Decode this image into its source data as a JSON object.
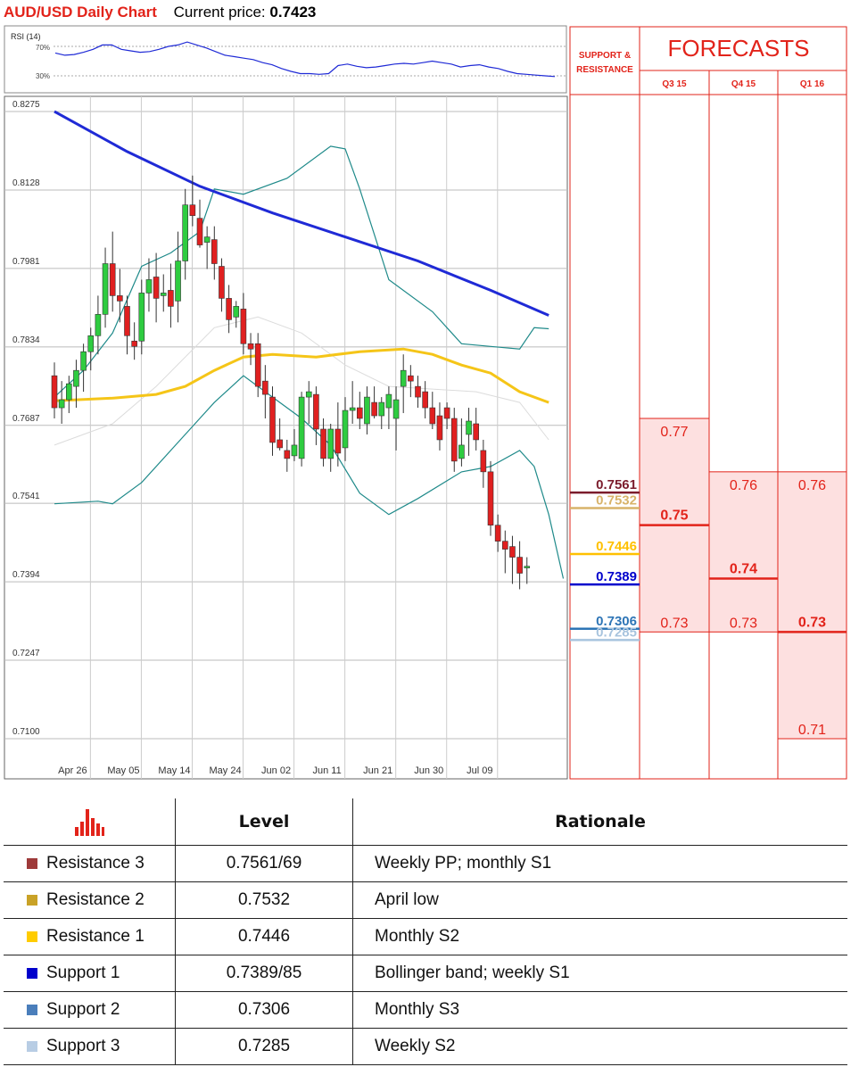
{
  "header": {
    "title": "AUD/USD Daily Chart",
    "price_label": "Current price:",
    "price_value": "0.7423"
  },
  "chart_data": {
    "type": "candlestick",
    "rsi": {
      "label": "RSI (14)",
      "levels": [
        "70%",
        "30%"
      ],
      "level_values": [
        70,
        30
      ],
      "values": [
        61,
        58,
        59,
        62,
        66,
        72,
        72,
        66,
        64,
        62,
        63,
        66,
        70,
        72,
        76,
        72,
        68,
        63,
        58,
        56,
        54,
        52,
        48,
        45,
        40,
        36,
        33,
        33,
        32,
        33,
        44,
        46,
        43,
        41,
        42,
        44,
        46,
        47,
        46,
        48,
        50,
        48,
        46,
        42,
        44,
        45,
        42,
        40,
        36,
        33,
        32,
        31,
        30,
        29
      ]
    },
    "y_ticks": [
      "0.8275",
      "0.8128",
      "0.7981",
      "0.7834",
      "0.7687",
      "0.7541",
      "0.7394",
      "0.7247",
      "0.7100"
    ],
    "ylim": [
      0.71,
      0.8275
    ],
    "x_ticks": [
      {
        "label": "Apr 26",
        "bar": 2.5
      },
      {
        "label": "May 05",
        "bar": 9.5
      },
      {
        "label": "May 14",
        "bar": 16.5
      },
      {
        "label": "May 24",
        "bar": 23.5
      },
      {
        "label": "Jun 02",
        "bar": 30.5
      },
      {
        "label": "Jun 11",
        "bar": 37.5
      },
      {
        "label": "Jun 21",
        "bar": 44.5
      },
      {
        "label": "Jun 30",
        "bar": 51.5
      },
      {
        "label": "Jul 09",
        "bar": 58.5
      }
    ],
    "ohlc": [
      [
        0.778,
        0.7805,
        0.77,
        0.772
      ],
      [
        0.772,
        0.777,
        0.769,
        0.7735
      ],
      [
        0.7735,
        0.778,
        0.771,
        0.7765
      ],
      [
        0.776,
        0.781,
        0.772,
        0.779
      ],
      [
        0.779,
        0.784,
        0.775,
        0.7825
      ],
      [
        0.7825,
        0.787,
        0.779,
        0.7855
      ],
      [
        0.7855,
        0.793,
        0.782,
        0.7895
      ],
      [
        0.7895,
        0.802,
        0.787,
        0.799
      ],
      [
        0.799,
        0.805,
        0.79,
        0.793
      ],
      [
        0.793,
        0.798,
        0.788,
        0.792
      ],
      [
        0.791,
        0.793,
        0.782,
        0.7855
      ],
      [
        0.7845,
        0.788,
        0.781,
        0.7835
      ],
      [
        0.7845,
        0.796,
        0.782,
        0.7935
      ],
      [
        0.7935,
        0.8,
        0.79,
        0.796
      ],
      [
        0.7965,
        0.801,
        0.788,
        0.7925
      ],
      [
        0.793,
        0.797,
        0.79,
        0.7935
      ],
      [
        0.794,
        0.799,
        0.787,
        0.791
      ],
      [
        0.792,
        0.805,
        0.788,
        0.7995
      ],
      [
        0.7995,
        0.813,
        0.796,
        0.81
      ],
      [
        0.81,
        0.8155,
        0.806,
        0.808
      ],
      [
        0.8075,
        0.811,
        0.802,
        0.8025
      ],
      [
        0.803,
        0.806,
        0.798,
        0.804
      ],
      [
        0.8035,
        0.806,
        0.796,
        0.799
      ],
      [
        0.7985,
        0.8,
        0.79,
        0.7925
      ],
      [
        0.7925,
        0.795,
        0.786,
        0.7885
      ],
      [
        0.789,
        0.792,
        0.787,
        0.791
      ],
      [
        0.7905,
        0.7935,
        0.782,
        0.784
      ],
      [
        0.784,
        0.786,
        0.78,
        0.783
      ],
      [
        0.784,
        0.786,
        0.774,
        0.776
      ],
      [
        0.777,
        0.78,
        0.77,
        0.7745
      ],
      [
        0.774,
        0.776,
        0.763,
        0.7655
      ],
      [
        0.766,
        0.77,
        0.764,
        0.7645
      ],
      [
        0.764,
        0.766,
        0.76,
        0.7625
      ],
      [
        0.763,
        0.768,
        0.762,
        0.765
      ],
      [
        0.7625,
        0.775,
        0.761,
        0.774
      ],
      [
        0.774,
        0.777,
        0.769,
        0.775
      ],
      [
        0.7745,
        0.776,
        0.765,
        0.768
      ],
      [
        0.768,
        0.77,
        0.761,
        0.7625
      ],
      [
        0.7625,
        0.769,
        0.76,
        0.768
      ],
      [
        0.768,
        0.773,
        0.761,
        0.7635
      ],
      [
        0.7645,
        0.774,
        0.762,
        0.7715
      ],
      [
        0.7715,
        0.777,
        0.769,
        0.772
      ],
      [
        0.772,
        0.775,
        0.768,
        0.77
      ],
      [
        0.769,
        0.776,
        0.767,
        0.774
      ],
      [
        0.773,
        0.776,
        0.77,
        0.7705
      ],
      [
        0.7705,
        0.774,
        0.768,
        0.773
      ],
      [
        0.772,
        0.776,
        0.768,
        0.7745
      ],
      [
        0.77,
        0.776,
        0.764,
        0.7735
      ],
      [
        0.776,
        0.782,
        0.771,
        0.779
      ],
      [
        0.778,
        0.78,
        0.774,
        0.777
      ],
      [
        0.776,
        0.778,
        0.772,
        0.774
      ],
      [
        0.775,
        0.777,
        0.77,
        0.772
      ],
      [
        0.772,
        0.775,
        0.768,
        0.769
      ],
      [
        0.7705,
        0.773,
        0.764,
        0.766
      ],
      [
        0.772,
        0.773,
        0.768,
        0.77
      ],
      [
        0.77,
        0.772,
        0.76,
        0.762
      ],
      [
        0.7625,
        0.77,
        0.761,
        0.765
      ],
      [
        0.767,
        0.772,
        0.763,
        0.7695
      ],
      [
        0.769,
        0.772,
        0.764,
        0.766
      ],
      [
        0.764,
        0.766,
        0.757,
        0.76
      ],
      [
        0.76,
        0.762,
        0.748,
        0.75
      ],
      [
        0.75,
        0.752,
        0.745,
        0.747
      ],
      [
        0.747,
        0.749,
        0.741,
        0.7455
      ],
      [
        0.746,
        0.748,
        0.739,
        0.744
      ],
      [
        0.744,
        0.747,
        0.738,
        0.741
      ],
      [
        0.742,
        0.744,
        0.739,
        0.7423
      ]
    ],
    "ma_200": [
      [
        0,
        0.8275
      ],
      [
        10,
        0.82
      ],
      [
        20,
        0.8135
      ],
      [
        30,
        0.8085
      ],
      [
        40,
        0.804
      ],
      [
        50,
        0.7995
      ],
      [
        60,
        0.794
      ],
      [
        68,
        0.7893
      ]
    ],
    "ma_55": [
      [
        0,
        0.7733
      ],
      [
        8,
        0.7738
      ],
      [
        14,
        0.7745
      ],
      [
        18,
        0.776
      ],
      [
        22,
        0.779
      ],
      [
        26,
        0.7815
      ],
      [
        30,
        0.782
      ],
      [
        36,
        0.7815
      ],
      [
        42,
        0.7825
      ],
      [
        48,
        0.783
      ],
      [
        52,
        0.782
      ],
      [
        56,
        0.78
      ],
      [
        60,
        0.7785
      ],
      [
        64,
        0.775
      ],
      [
        68,
        0.773
      ]
    ],
    "bb_upper": [
      [
        0,
        0.774
      ],
      [
        4,
        0.779
      ],
      [
        8,
        0.786
      ],
      [
        12,
        0.7985
      ],
      [
        16,
        0.801
      ],
      [
        20,
        0.805
      ],
      [
        22,
        0.813
      ],
      [
        26,
        0.812
      ],
      [
        32,
        0.815
      ],
      [
        38,
        0.821
      ],
      [
        40,
        0.8205
      ],
      [
        42,
        0.813
      ],
      [
        46,
        0.796
      ],
      [
        52,
        0.79
      ],
      [
        56,
        0.784
      ],
      [
        60,
        0.7835
      ],
      [
        64,
        0.783
      ],
      [
        66,
        0.787
      ],
      [
        68,
        0.7868
      ]
    ],
    "bb_lower": [
      [
        0,
        0.754
      ],
      [
        6,
        0.7545
      ],
      [
        8,
        0.754
      ],
      [
        12,
        0.758
      ],
      [
        16,
        0.764
      ],
      [
        20,
        0.77
      ],
      [
        22,
        0.773
      ],
      [
        26,
        0.778
      ],
      [
        30,
        0.774
      ],
      [
        34,
        0.77
      ],
      [
        38,
        0.765
      ],
      [
        42,
        0.756
      ],
      [
        46,
        0.752
      ],
      [
        50,
        0.755
      ],
      [
        56,
        0.76
      ],
      [
        60,
        0.761
      ],
      [
        64,
        0.764
      ],
      [
        66,
        0.761
      ],
      [
        68,
        0.752
      ],
      [
        70,
        0.74
      ]
    ],
    "bb_mid": [
      [
        0,
        0.765
      ],
      [
        8,
        0.769
      ],
      [
        14,
        0.776
      ],
      [
        22,
        0.787
      ],
      [
        28,
        0.789
      ],
      [
        34,
        0.786
      ],
      [
        40,
        0.78
      ],
      [
        46,
        0.776
      ],
      [
        52,
        0.7755
      ],
      [
        58,
        0.775
      ],
      [
        64,
        0.773
      ],
      [
        68,
        0.766
      ]
    ]
  },
  "sr": {
    "header": "SUPPORT & RESISTANCE",
    "levels": [
      {
        "label": "0.7561",
        "value": 0.7561,
        "color": "#7b1c2c"
      },
      {
        "label": "0.7532",
        "value": 0.7532,
        "color": "#d8b36a"
      },
      {
        "label": "0.7446",
        "value": 0.7446,
        "color": "#ffc000"
      },
      {
        "label": "0.7389",
        "value": 0.7389,
        "color": "#0000cc"
      },
      {
        "label": "0.7306",
        "value": 0.7306,
        "color": "#2e75b6"
      },
      {
        "label": "0.7285",
        "value": 0.7285,
        "color": "#a8c4de"
      }
    ]
  },
  "forecasts": {
    "title": "FORECASTS",
    "columns": [
      {
        "label": "Q3 15",
        "high": 0.77,
        "low": 0.73,
        "mid": 0.75,
        "labels": [
          "0.77",
          "0.75",
          "0.73"
        ]
      },
      {
        "label": "Q4 15",
        "high": 0.76,
        "low": 0.73,
        "mid": 0.74,
        "labels": [
          "0.76",
          "0.74",
          "0.73"
        ]
      },
      {
        "label": "Q1 16",
        "high": 0.76,
        "low": 0.71,
        "mid": 0.73,
        "labels": [
          "0.76",
          "0.73",
          "0.71"
        ]
      }
    ]
  },
  "table": {
    "headers": {
      "level": "Level",
      "rationale": "Rationale"
    },
    "rows": [
      {
        "name": "Resistance 3",
        "color": "#9e3a3a",
        "level": "0.7561/69",
        "rationale": "Weekly PP; monthly S1"
      },
      {
        "name": "Resistance 2",
        "color": "#c9a227",
        "level": "0.7532",
        "rationale": "April low"
      },
      {
        "name": "Resistance 1",
        "color": "#ffcc00",
        "level": "0.7446",
        "rationale": "Monthly S2"
      },
      {
        "name": "Support 1",
        "color": "#0000cc",
        "level": "0.7389/85",
        "rationale": "Bollinger band; weekly S1"
      },
      {
        "name": "Support 2",
        "color": "#4a7ebb",
        "level": "0.7306",
        "rationale": "Monthly S3"
      },
      {
        "name": "Support 3",
        "color": "#b8cde4",
        "level": "0.7285",
        "rationale": "Weekly S2"
      }
    ]
  }
}
